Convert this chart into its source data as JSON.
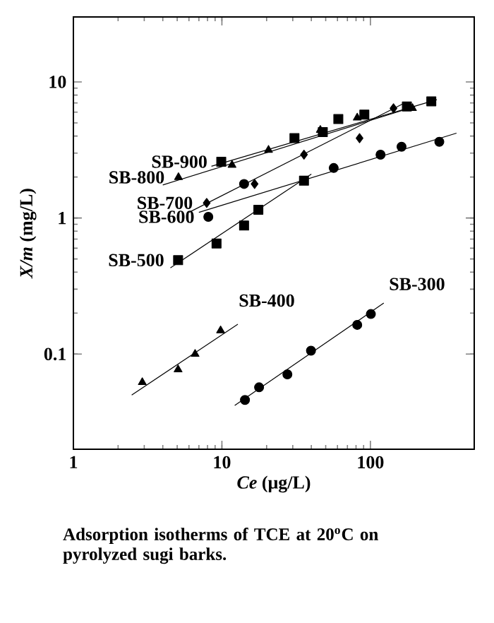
{
  "chart_data": {
    "type": "scatter",
    "title": "Adsorption isotherms of TCE at 20$^{o}$C on pyrolyzed sugi barks.",
    "xlabel": "*Ce* (μg/L)",
    "ylabel": "*X/m* (mg/L)",
    "log": "xy",
    "xlim": [
      1,
      500
    ],
    "ylim": [
      0.02,
      30
    ],
    "xticks": [
      1,
      10,
      100
    ],
    "yticks": [
      0.1,
      1,
      10
    ],
    "grid": false,
    "legend": false,
    "series": [
      {
        "name": "SB-900",
        "marker": "square",
        "color": "#000000",
        "x": [
          9.9,
          30.8,
          47.8,
          60.8,
          91,
          176,
          257
        ],
        "values": [
          2.59,
          3.86,
          4.28,
          5.33,
          5.75,
          6.6,
          7.2
        ]
      },
      {
        "name": "SB-800",
        "marker": "triangle",
        "color": "#000000",
        "x": [
          5.1,
          11.7,
          20.6,
          46,
          81.5,
          192
        ],
        "values": [
          1.99,
          2.45,
          3.16,
          4.43,
          5.45,
          6.4
        ]
      },
      {
        "name": "SB-700",
        "marker": "diamond",
        "color": "#000000",
        "x": [
          7.9,
          16.6,
          35.7,
          84.5,
          143
        ],
        "values": [
          1.29,
          1.78,
          2.92,
          3.86,
          6.4
        ]
      },
      {
        "name": "SB-600",
        "marker": "circle",
        "color": "#000000",
        "x": [
          8.1,
          14.1,
          56.6,
          117,
          162,
          291
        ],
        "values": [
          1.02,
          1.78,
          2.33,
          2.92,
          3.34,
          3.63
        ]
      },
      {
        "name": "SB-500",
        "marker": "square",
        "color": "#000000",
        "x": [
          5.07,
          9.2,
          14.1,
          17.6,
          35.7
        ],
        "values": [
          0.49,
          0.65,
          0.88,
          1.15,
          1.88
        ]
      },
      {
        "name": "SB-400",
        "marker": "triangle",
        "color": "#000000",
        "x": [
          2.91,
          5.07,
          6.6,
          9.8
        ],
        "values": [
          0.062,
          0.077,
          0.1,
          0.149
        ]
      },
      {
        "name": "SB-300",
        "marker": "circle",
        "color": "#000000",
        "x": [
          14.3,
          17.8,
          27.6,
          39.8,
          81.5,
          100.7
        ],
        "values": [
          0.046,
          0.057,
          0.071,
          0.106,
          0.164,
          0.197
        ]
      },
      {
        "type": "line",
        "marker": "none",
        "color": "#000000",
        "x": [
          8.5,
          280
        ],
        "values": [
          2.4,
          7.4
        ]
      },
      {
        "type": "line",
        "marker": "none",
        "color": "#000000",
        "x": [
          4.0,
          200
        ],
        "values": [
          1.75,
          6.6
        ]
      },
      {
        "type": "line",
        "marker": "none",
        "color": "#000000",
        "x": [
          6.0,
          170
        ],
        "values": [
          1.1,
          7.0
        ]
      },
      {
        "type": "line",
        "marker": "none",
        "color": "#000000",
        "x": [
          7.0,
          380
        ],
        "values": [
          1.1,
          4.2
        ]
      },
      {
        "type": "line",
        "marker": "none",
        "color": "#000000",
        "x": [
          4.5,
          40
        ],
        "values": [
          0.43,
          2.1
        ]
      },
      {
        "type": "line",
        "marker": "none",
        "color": "#000000",
        "x": [
          2.47,
          12.8
        ],
        "values": [
          0.05,
          0.166
        ]
      },
      {
        "type": "line",
        "marker": "none",
        "color": "#000000",
        "x": [
          12.2,
          123
        ],
        "values": [
          0.042,
          0.237
        ]
      }
    ]
  }
}
